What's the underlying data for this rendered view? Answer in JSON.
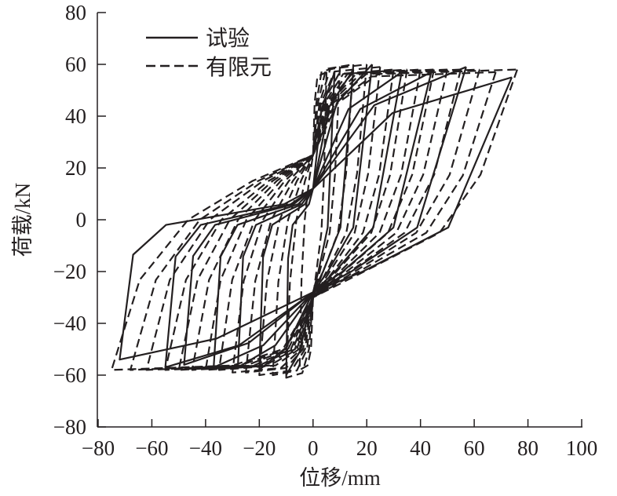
{
  "chart_data": {
    "type": "line",
    "title": "",
    "xlabel": "位移/mm",
    "ylabel": "荷载/kN",
    "xlim": [
      -80,
      100
    ],
    "ylim": [
      -80,
      80
    ],
    "xticks": [
      -80,
      -60,
      -40,
      -20,
      0,
      20,
      40,
      60,
      80,
      100
    ],
    "yticks": [
      -80,
      -60,
      -40,
      -20,
      0,
      20,
      40,
      60,
      80
    ],
    "grid": false,
    "legend_position": "top-left",
    "color": "#231f20",
    "series": [
      {
        "name": "试验",
        "style": "solid",
        "cycles": [
          {
            "pos": [
              8,
              57
            ],
            "neg": [
              -10,
              -60
            ]
          },
          {
            "pos": [
              15,
              58
            ],
            "neg": [
              -20,
              -58
            ]
          },
          {
            "pos": [
              22,
              60
            ],
            "neg": [
              -28,
              -57
            ]
          },
          {
            "pos": [
              33,
              57
            ],
            "neg": [
              -37,
              -57
            ]
          },
          {
            "pos": [
              44,
              57
            ],
            "neg": [
              -48,
              -56
            ]
          },
          {
            "pos": [
              57,
              59
            ],
            "neg": [
              -55,
              -57
            ]
          },
          {
            "pos": [
              74,
              55
            ],
            "neg": [
              -72,
              -54
            ]
          }
        ]
      },
      {
        "name": "有限元",
        "style": "dashed",
        "cycles": [
          {
            "pos": [
              5,
              57
            ],
            "neg": [
              -5,
              -58
            ]
          },
          {
            "pos": [
              10,
              59
            ],
            "neg": [
              -10,
              -61
            ]
          },
          {
            "pos": [
              15,
              60
            ],
            "neg": [
              -15,
              -60
            ]
          },
          {
            "pos": [
              20,
              60
            ],
            "neg": [
              -20,
              -60
            ]
          },
          {
            "pos": [
              25,
              59
            ],
            "neg": [
              -25,
              -59
            ]
          },
          {
            "pos": [
              30,
              58
            ],
            "neg": [
              -30,
              -59
            ]
          },
          {
            "pos": [
              35,
              58
            ],
            "neg": [
              -35,
              -58
            ]
          },
          {
            "pos": [
              40,
              58
            ],
            "neg": [
              -40,
              -58
            ]
          },
          {
            "pos": [
              45,
              58
            ],
            "neg": [
              -45,
              -58
            ]
          },
          {
            "pos": [
              50,
              58
            ],
            "neg": [
              -50,
              -58
            ]
          },
          {
            "pos": [
              55,
              58
            ],
            "neg": [
              -55,
              -58
            ]
          },
          {
            "pos": [
              62,
              58
            ],
            "neg": [
              -62,
              -58
            ]
          },
          {
            "pos": [
              68,
              57
            ],
            "neg": [
              -68,
              -58
            ]
          },
          {
            "pos": [
              76,
              58
            ],
            "neg": [
              -75,
              -58
            ]
          }
        ]
      }
    ]
  }
}
